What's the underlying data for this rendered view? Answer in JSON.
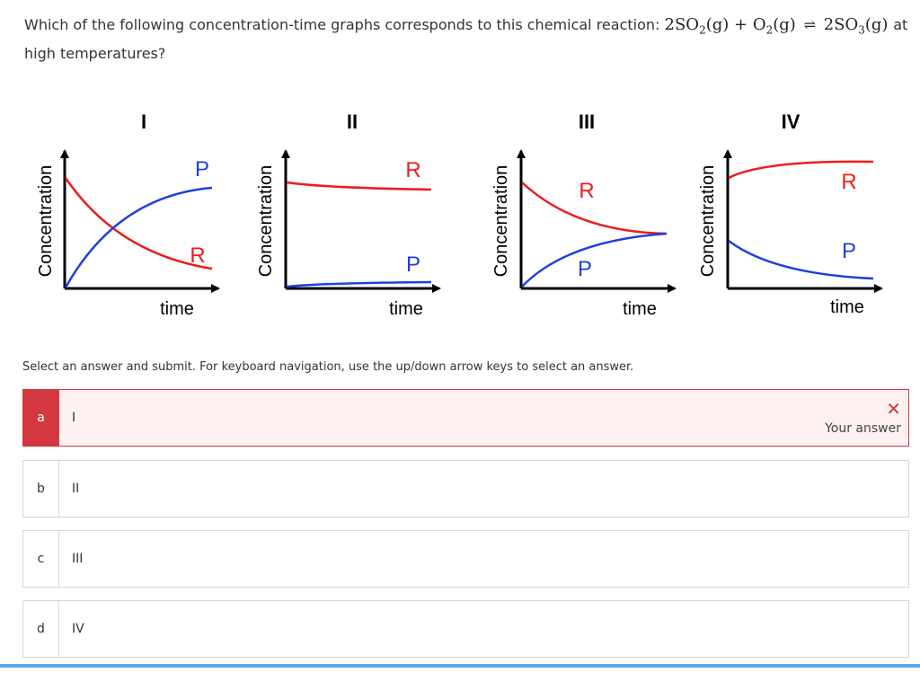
{
  "question": {
    "text": "Which of the following concentration-time graphs corresponds to this chemical reaction:",
    "equation": {
      "r1_coef": "2SO",
      "r1_sub": "2",
      "r1_state": "(g)",
      "plus": "+",
      "r2": "O",
      "r2_sub": "2",
      "r2_state": "(g)",
      "arrow": "⇌",
      "p1_coef": "2SO",
      "p1_sub": "3",
      "p1_state": "(g)"
    },
    "suffix": "at high temperatures?"
  },
  "figure": {
    "ylabel": "Concentration",
    "xlabel": "time",
    "panels": [
      {
        "roman": "I",
        "labels": [
          "P",
          "R"
        ]
      },
      {
        "roman": "II",
        "labels": [
          "R",
          "P"
        ]
      },
      {
        "roman": "III",
        "labels": [
          "R",
          "P"
        ]
      },
      {
        "roman": "IV",
        "labels": [
          "R",
          "P"
        ]
      }
    ],
    "colors": {
      "reactant": "#ee1c1c",
      "product": "#1f3fe0"
    }
  },
  "instruction": "Select an answer and submit. For keyboard navigation, use the up/down arrow keys to select an answer.",
  "options": [
    {
      "letter": "a",
      "label": "I",
      "state": "wrong",
      "feedback": "Your answer",
      "feedback_icon": "close-icon"
    },
    {
      "letter": "b",
      "label": "II"
    },
    {
      "letter": "c",
      "label": "III"
    },
    {
      "letter": "d",
      "label": "IV"
    }
  ]
}
